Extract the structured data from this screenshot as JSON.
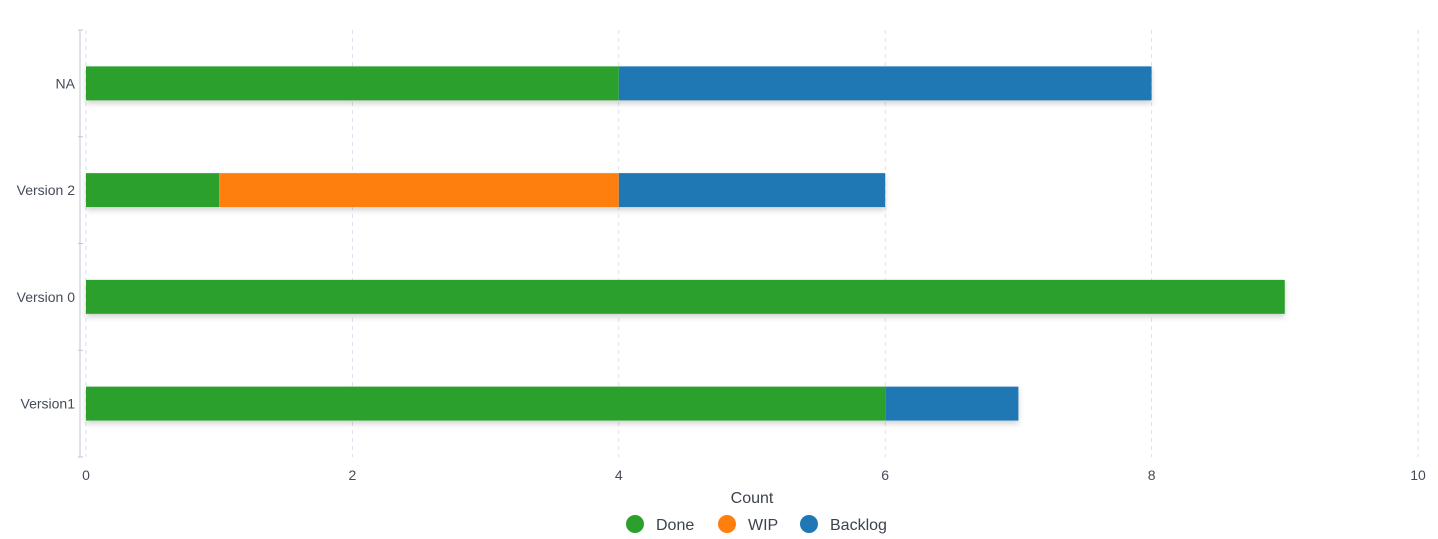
{
  "chart_data": {
    "type": "bar",
    "orientation": "horizontal",
    "stacked": true,
    "categories": [
      "NA",
      "Version 2",
      "Version 0",
      "Version1"
    ],
    "series": [
      {
        "name": "Done",
        "values": [
          4,
          1,
          9,
          6
        ],
        "color": "#2ca02c"
      },
      {
        "name": "WIP",
        "values": [
          0,
          3,
          0,
          0
        ],
        "color": "#ff7f0e"
      },
      {
        "name": "Backlog",
        "values": [
          4,
          2,
          0,
          1
        ],
        "color": "#1f77b4"
      }
    ],
    "x_ticks": [
      "0",
      "2",
      "4",
      "6",
      "8",
      "10"
    ],
    "xlabel": "Count",
    "ylabel": "",
    "xlim": [
      0,
      10
    ],
    "grid": true,
    "legend_position": "bottom-center"
  }
}
